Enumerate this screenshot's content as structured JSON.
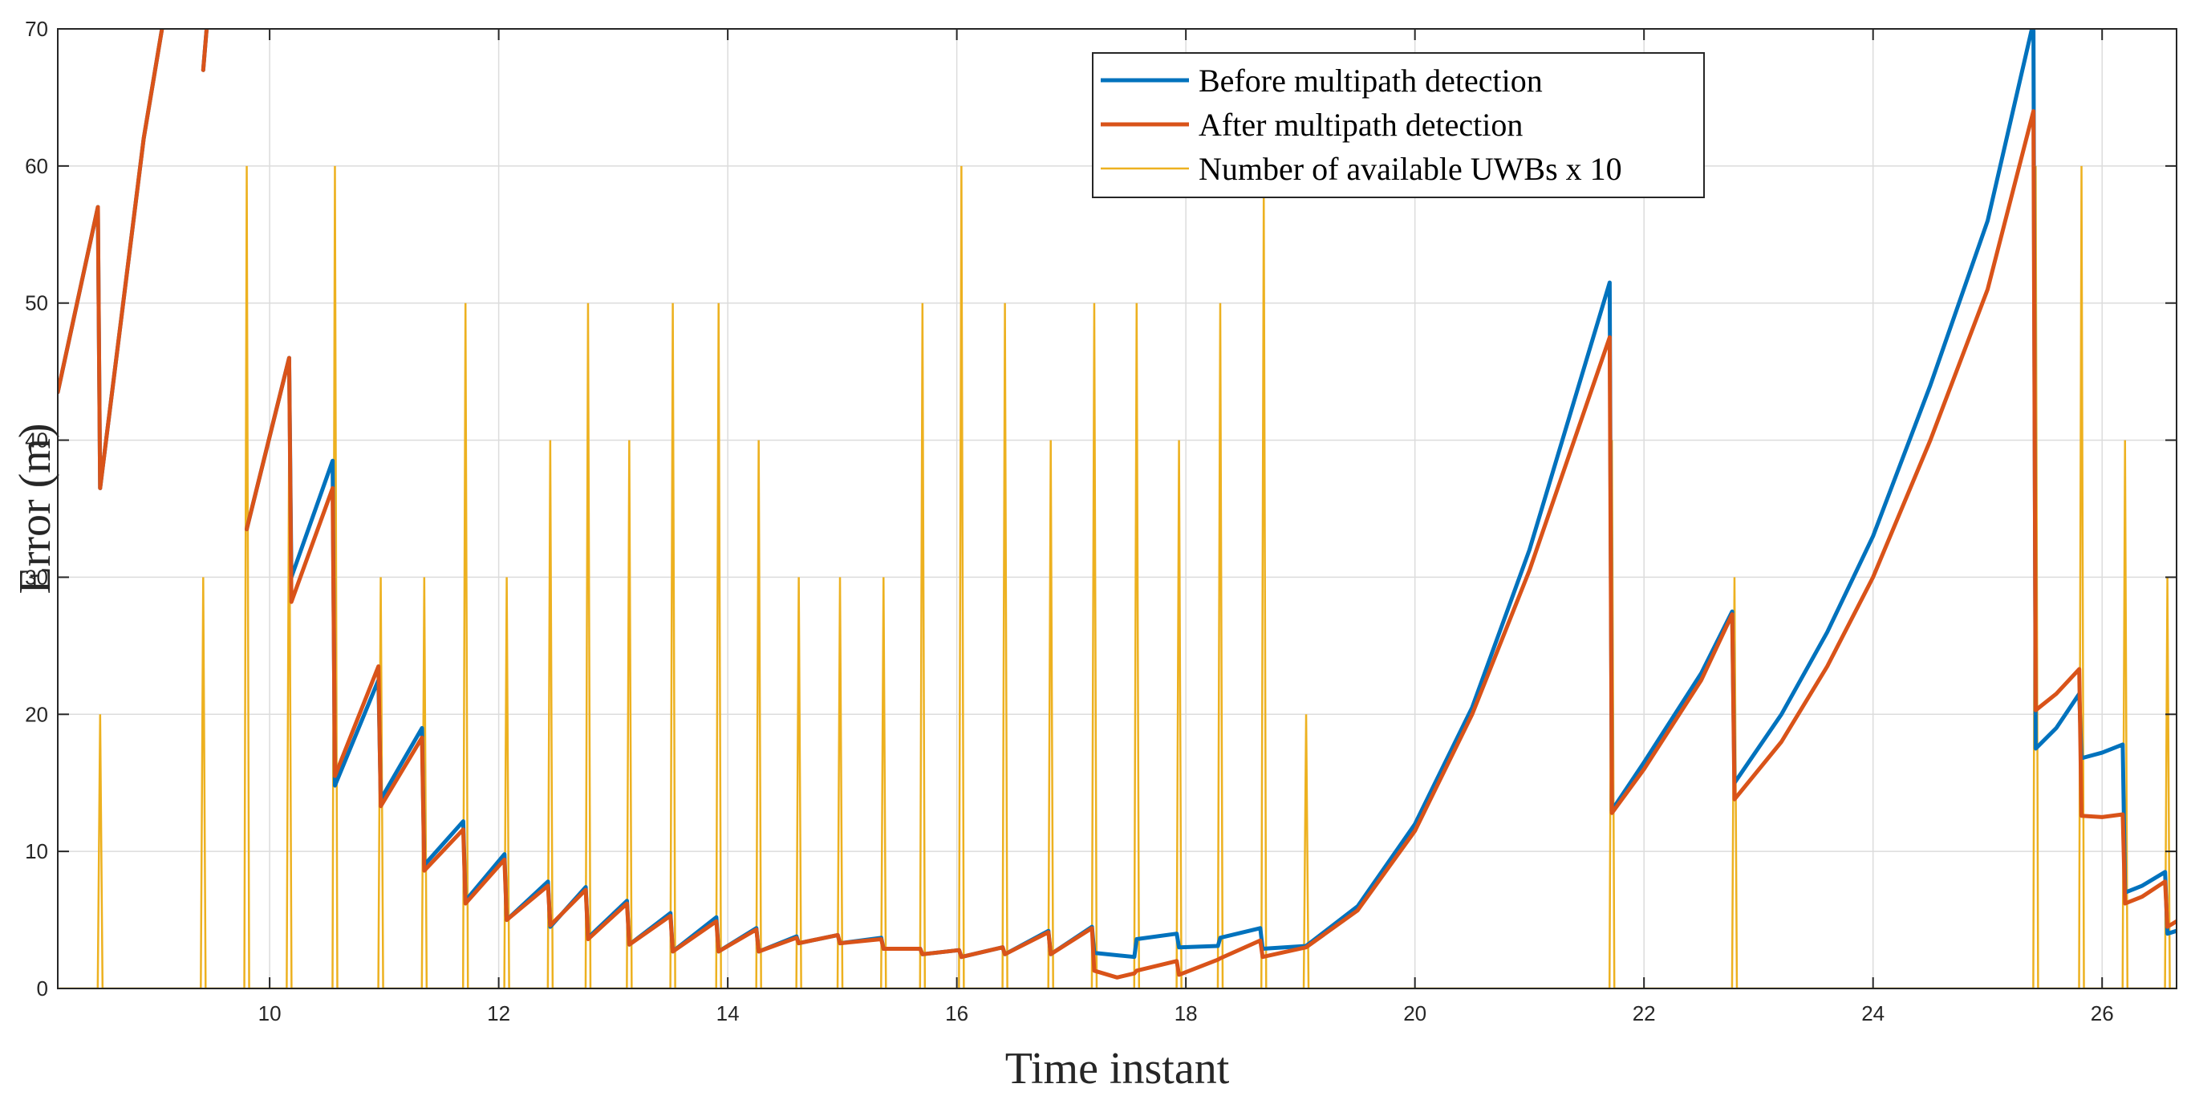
{
  "chart_data": {
    "type": "line",
    "title": "",
    "xlabel": "Time instant",
    "ylabel": "Error (m)",
    "xlim": [
      8.15,
      26.65
    ],
    "ylim": [
      0,
      70
    ],
    "xticks": [
      10,
      12,
      14,
      16,
      18,
      20,
      22,
      24,
      26
    ],
    "yticks": [
      0,
      10,
      20,
      30,
      40,
      50,
      60,
      70
    ],
    "grid": true,
    "legend_position": "top-right",
    "colors": {
      "before": "#0072BD",
      "after": "#D95319",
      "uwb": "#EDB120",
      "grid": "#dcdcdc",
      "axis": "#262626"
    },
    "series": [
      {
        "name": "Before multipath detection",
        "color_key": "before",
        "width": "thick",
        "segments": [
          [
            [
              8.15,
              43.5
            ],
            [
              8.5,
              57
            ],
            [
              8.52,
              36.5
            ],
            [
              8.9,
              62
            ],
            [
              9.1,
              72
            ]
          ],
          [
            [
              9.42,
              67
            ],
            [
              9.47,
              72
            ]
          ],
          [
            [
              9.8,
              33.5
            ],
            [
              10.17,
              46
            ],
            [
              10.19,
              30
            ],
            [
              10.55,
              38.5
            ],
            [
              10.57,
              14.8
            ],
            [
              10.95,
              22.5
            ],
            [
              10.97,
              13.8
            ],
            [
              11.33,
              19
            ],
            [
              11.35,
              9
            ],
            [
              11.69,
              12.2
            ],
            [
              11.71,
              6.4
            ],
            [
              12.05,
              9.8
            ],
            [
              12.07,
              5
            ],
            [
              12.43,
              7.8
            ],
            [
              12.45,
              4.5
            ],
            [
              12.76,
              7.4
            ],
            [
              12.78,
              3.7
            ],
            [
              13.12,
              6.4
            ],
            [
              13.14,
              3.2
            ],
            [
              13.5,
              5.5
            ],
            [
              13.52,
              2.7
            ],
            [
              13.9,
              5.2
            ],
            [
              13.92,
              2.7
            ],
            [
              14.25,
              4.4
            ],
            [
              14.27,
              2.7
            ],
            [
              14.6,
              3.8
            ],
            [
              14.62,
              3.3
            ],
            [
              14.96,
              3.9
            ],
            [
              14.98,
              3.3
            ],
            [
              15.34,
              3.7
            ],
            [
              15.36,
              2.9
            ],
            [
              15.68,
              2.9
            ],
            [
              15.7,
              2.5
            ],
            [
              16.02,
              2.8
            ],
            [
              16.04,
              2.3
            ],
            [
              16.4,
              3
            ],
            [
              16.42,
              2.5
            ],
            [
              16.8,
              4.2
            ],
            [
              16.82,
              2.5
            ],
            [
              17.18,
              4.5
            ],
            [
              17.2,
              2.6
            ],
            [
              17.55,
              2.3
            ],
            [
              17.57,
              3.6
            ],
            [
              17.92,
              4
            ],
            [
              17.94,
              3
            ],
            [
              18.28,
              3.1
            ],
            [
              18.3,
              3.7
            ],
            [
              18.65,
              4.4
            ],
            [
              18.67,
              2.9
            ],
            [
              19.05,
              3.1
            ],
            [
              19.5,
              6
            ],
            [
              20,
              12
            ],
            [
              20.5,
              20.5
            ],
            [
              21,
              32
            ],
            [
              21.7,
              51.5
            ],
            [
              21.72,
              13
            ],
            [
              22,
              16.5
            ],
            [
              22.5,
              23
            ],
            [
              22.77,
              27.5
            ],
            [
              22.79,
              15
            ],
            [
              23.2,
              20
            ],
            [
              23.6,
              26
            ],
            [
              24,
              33
            ],
            [
              24.5,
              44
            ],
            [
              25,
              56
            ],
            [
              25.4,
              70.5
            ],
            [
              25.42,
              17.5
            ],
            [
              25.6,
              19
            ],
            [
              25.8,
              21.5
            ],
            [
              25.82,
              16.8
            ],
            [
              26,
              17.2
            ],
            [
              26.18,
              17.8
            ],
            [
              26.2,
              7
            ],
            [
              26.35,
              7.5
            ],
            [
              26.55,
              8.5
            ],
            [
              26.57,
              4
            ],
            [
              26.65,
              4.2
            ]
          ]
        ]
      },
      {
        "name": "After multipath detection",
        "color_key": "after",
        "width": "thick",
        "segments": [
          [
            [
              8.15,
              43.5
            ],
            [
              8.5,
              57
            ],
            [
              8.52,
              36.5
            ],
            [
              8.9,
              62
            ],
            [
              9.1,
              72
            ]
          ],
          [
            [
              9.42,
              67
            ],
            [
              9.47,
              72
            ]
          ],
          [
            [
              9.8,
              33.5
            ],
            [
              10.17,
              46
            ],
            [
              10.19,
              28.2
            ],
            [
              10.55,
              36.5
            ],
            [
              10.57,
              15.5
            ],
            [
              10.95,
              23.5
            ],
            [
              10.97,
              13.3
            ],
            [
              11.33,
              18.3
            ],
            [
              11.35,
              8.6
            ],
            [
              11.69,
              11.6
            ],
            [
              11.71,
              6.2
            ],
            [
              12.05,
              9.4
            ],
            [
              12.07,
              5
            ],
            [
              12.43,
              7.5
            ],
            [
              12.45,
              4.6
            ],
            [
              12.76,
              7.2
            ],
            [
              12.78,
              3.6
            ],
            [
              13.12,
              6.2
            ],
            [
              13.14,
              3.2
            ],
            [
              13.5,
              5.3
            ],
            [
              13.52,
              2.7
            ],
            [
              13.9,
              4.9
            ],
            [
              13.92,
              2.7
            ],
            [
              14.25,
              4.3
            ],
            [
              14.27,
              2.7
            ],
            [
              14.6,
              3.7
            ],
            [
              14.62,
              3.3
            ],
            [
              14.96,
              3.9
            ],
            [
              14.98,
              3.3
            ],
            [
              15.34,
              3.6
            ],
            [
              15.36,
              2.9
            ],
            [
              15.68,
              2.9
            ],
            [
              15.7,
              2.5
            ],
            [
              16.02,
              2.8
            ],
            [
              16.04,
              2.3
            ],
            [
              16.4,
              3
            ],
            [
              16.42,
              2.5
            ],
            [
              16.8,
              4.1
            ],
            [
              16.82,
              2.5
            ],
            [
              17.18,
              4.4
            ],
            [
              17.2,
              1.3
            ],
            [
              17.4,
              0.8
            ],
            [
              17.55,
              1.1
            ],
            [
              17.57,
              1.3
            ],
            [
              17.92,
              2
            ],
            [
              17.94,
              1
            ],
            [
              18.28,
              2.1
            ],
            [
              18.3,
              2.2
            ],
            [
              18.65,
              3.5
            ],
            [
              18.67,
              2.3
            ],
            [
              19.05,
              3
            ],
            [
              19.5,
              5.7
            ],
            [
              20,
              11.5
            ],
            [
              20.5,
              20
            ],
            [
              21,
              30.5
            ],
            [
              21.7,
              47.5
            ],
            [
              21.72,
              12.8
            ],
            [
              22,
              16
            ],
            [
              22.5,
              22.5
            ],
            [
              22.77,
              27.3
            ],
            [
              22.79,
              13.8
            ],
            [
              23.2,
              18
            ],
            [
              23.6,
              23.5
            ],
            [
              24,
              30
            ],
            [
              24.5,
              40
            ],
            [
              25,
              51
            ],
            [
              25.4,
              64
            ],
            [
              25.42,
              20.3
            ],
            [
              25.6,
              21.5
            ],
            [
              25.8,
              23.3
            ],
            [
              25.82,
              12.6
            ],
            [
              26,
              12.5
            ],
            [
              26.18,
              12.7
            ],
            [
              26.2,
              6.2
            ],
            [
              26.35,
              6.7
            ],
            [
              26.55,
              7.8
            ],
            [
              26.57,
              4.5
            ],
            [
              26.65,
              4.9
            ]
          ]
        ]
      },
      {
        "name": "Number of available UWBs x 10",
        "color_key": "uwb",
        "width": "thin",
        "spikes": [
          [
            8.52,
            20
          ],
          [
            9.42,
            30
          ],
          [
            9.8,
            60
          ],
          [
            10.17,
            40
          ],
          [
            10.57,
            60
          ],
          [
            10.97,
            30
          ],
          [
            11.35,
            30
          ],
          [
            11.71,
            50
          ],
          [
            12.07,
            30
          ],
          [
            12.45,
            40
          ],
          [
            12.78,
            50
          ],
          [
            13.14,
            40
          ],
          [
            13.52,
            50
          ],
          [
            13.92,
            50
          ],
          [
            14.27,
            40
          ],
          [
            14.62,
            30
          ],
          [
            14.98,
            30
          ],
          [
            15.36,
            30
          ],
          [
            15.7,
            50
          ],
          [
            16.04,
            60
          ],
          [
            16.42,
            50
          ],
          [
            16.82,
            40
          ],
          [
            17.2,
            50
          ],
          [
            17.57,
            50
          ],
          [
            17.94,
            40
          ],
          [
            18.3,
            50
          ],
          [
            18.68,
            58
          ],
          [
            19.05,
            20
          ],
          [
            21.72,
            40
          ],
          [
            22.79,
            30
          ],
          [
            25.42,
            60
          ],
          [
            25.82,
            60
          ],
          [
            26.2,
            40
          ],
          [
            26.57,
            30
          ]
        ]
      }
    ]
  }
}
